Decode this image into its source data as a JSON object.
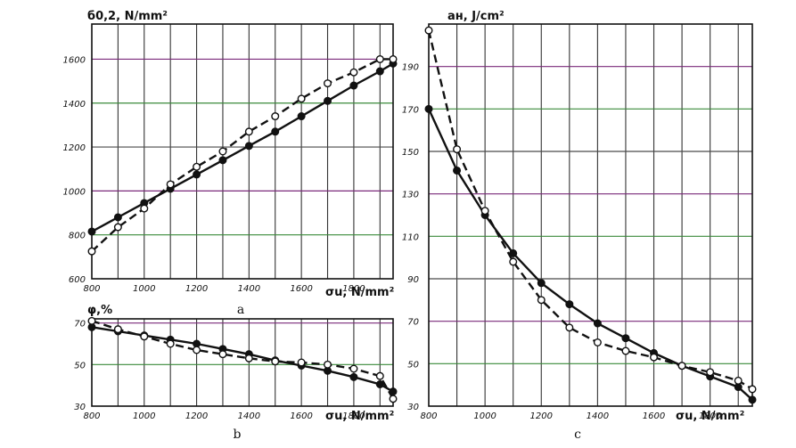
{
  "chart_data": [
    {
      "id": "a",
      "type": "line",
      "caption": "a",
      "ylabel": "б0,2, N/mm²",
      "xlabel": "σu, N/mm²",
      "xlim": [
        800,
        1950
      ],
      "ylim": [
        600,
        1760
      ],
      "xticks": [
        800,
        1000,
        1200,
        1400,
        1600,
        1800
      ],
      "yticks": [
        600,
        800,
        1000,
        1200,
        1400,
        1600
      ],
      "grid": true,
      "series": [
        {
          "marker": "filled",
          "line": "solid",
          "x": [
            800,
            900,
            1000,
            1100,
            1200,
            1300,
            1400,
            1500,
            1600,
            1700,
            1800,
            1900,
            1950
          ],
          "y": [
            815,
            880,
            945,
            1010,
            1075,
            1140,
            1205,
            1270,
            1340,
            1410,
            1480,
            1545,
            1580
          ]
        },
        {
          "marker": "open",
          "line": "dashed",
          "x": [
            800,
            900,
            1000,
            1100,
            1200,
            1300,
            1400,
            1500,
            1600,
            1700,
            1800,
            1900,
            1950
          ],
          "y": [
            725,
            835,
            920,
            1030,
            1110,
            1180,
            1270,
            1340,
            1420,
            1490,
            1540,
            1600,
            1600
          ]
        }
      ]
    },
    {
      "id": "b",
      "type": "line",
      "caption": "b",
      "ylabel": "φ,%",
      "xlabel": "σu, N/mm²",
      "xlim": [
        800,
        1950
      ],
      "ylim": [
        30,
        72
      ],
      "xticks": [
        800,
        1000,
        1200,
        1400,
        1600,
        1800
      ],
      "yticks": [
        30,
        50,
        70
      ],
      "grid": true,
      "series": [
        {
          "marker": "filled",
          "line": "solid",
          "x": [
            800,
            900,
            1000,
            1100,
            1200,
            1300,
            1400,
            1500,
            1600,
            1700,
            1800,
            1900,
            1950
          ],
          "y": [
            68,
            66,
            64,
            62,
            60,
            57.5,
            55,
            52,
            49.5,
            47,
            44,
            40.5,
            37
          ]
        },
        {
          "marker": "open",
          "line": "dashed",
          "x": [
            800,
            900,
            1000,
            1100,
            1200,
            1300,
            1400,
            1500,
            1600,
            1700,
            1800,
            1900,
            1950
          ],
          "y": [
            71,
            67,
            63.5,
            60,
            57,
            55,
            53,
            51.5,
            51,
            50,
            48,
            44.5,
            33.5
          ]
        }
      ]
    },
    {
      "id": "c",
      "type": "line",
      "caption": "c",
      "ylabel": "aн, J/cm²",
      "xlabel": "σu, N/mm²",
      "xlim": [
        800,
        1950
      ],
      "ylim": [
        30,
        210
      ],
      "xticks": [
        800,
        1000,
        1200,
        1400,
        1600,
        1800
      ],
      "yticks": [
        30,
        50,
        70,
        90,
        110,
        130,
        150,
        170,
        190
      ],
      "grid": true,
      "series": [
        {
          "marker": "filled",
          "line": "solid",
          "x": [
            800,
            900,
            1000,
            1100,
            1200,
            1300,
            1400,
            1500,
            1600,
            1700,
            1800,
            1900,
            1950
          ],
          "y": [
            170,
            141,
            120,
            102,
            88,
            78,
            69,
            62,
            55,
            49,
            44,
            39,
            33
          ]
        },
        {
          "marker": "open",
          "line": "dashed",
          "x": [
            800,
            900,
            1000,
            1100,
            1200,
            1300,
            1400,
            1500,
            1600,
            1700,
            1800,
            1900,
            1950
          ],
          "y": [
            207,
            151,
            122,
            98,
            80,
            67,
            60,
            56,
            53,
            49,
            46,
            42,
            38
          ]
        }
      ]
    }
  ]
}
